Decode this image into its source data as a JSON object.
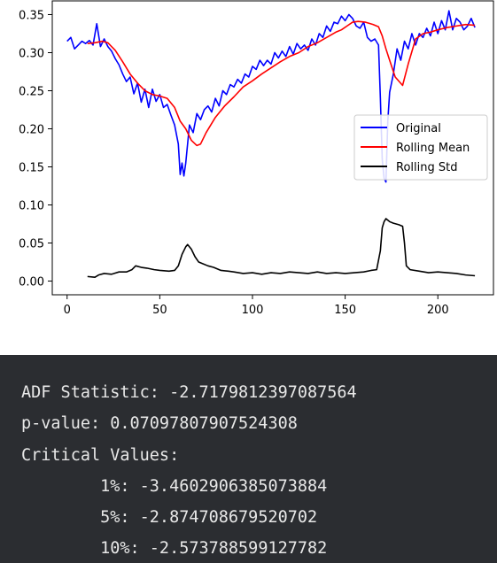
{
  "chart_data": {
    "type": "line",
    "title": "",
    "xlabel": "",
    "ylabel": "",
    "xlim": [
      -8,
      230
    ],
    "ylim": [
      -0.018,
      0.368
    ],
    "x_ticks": [
      0,
      50,
      100,
      150,
      200
    ],
    "y_ticks": [
      0.0,
      0.05,
      0.1,
      0.15,
      0.2,
      0.25,
      0.3,
      0.35
    ],
    "x_tick_labels": [
      "0",
      "50",
      "100",
      "150",
      "200"
    ],
    "y_tick_labels": [
      "0.00",
      "0.05",
      "0.10",
      "0.15",
      "0.20",
      "0.25",
      "0.30",
      "0.35"
    ],
    "grid": false,
    "legend_position": "center right",
    "series": [
      {
        "name": "Original",
        "color": "#0000ff",
        "points": [
          [
            0,
            0.315
          ],
          [
            2,
            0.32
          ],
          [
            4,
            0.305
          ],
          [
            6,
            0.31
          ],
          [
            8,
            0.315
          ],
          [
            10,
            0.312
          ],
          [
            12,
            0.316
          ],
          [
            14,
            0.31
          ],
          [
            16,
            0.338
          ],
          [
            18,
            0.308
          ],
          [
            20,
            0.318
          ],
          [
            22,
            0.308
          ],
          [
            24,
            0.302
          ],
          [
            26,
            0.292
          ],
          [
            28,
            0.284
          ],
          [
            30,
            0.272
          ],
          [
            32,
            0.262
          ],
          [
            34,
            0.268
          ],
          [
            36,
            0.246
          ],
          [
            38,
            0.26
          ],
          [
            40,
            0.235
          ],
          [
            42,
            0.252
          ],
          [
            44,
            0.228
          ],
          [
            46,
            0.252
          ],
          [
            48,
            0.236
          ],
          [
            50,
            0.245
          ],
          [
            52,
            0.228
          ],
          [
            54,
            0.232
          ],
          [
            56,
            0.218
          ],
          [
            58,
            0.205
          ],
          [
            60,
            0.18
          ],
          [
            61,
            0.14
          ],
          [
            62,
            0.155
          ],
          [
            63,
            0.138
          ],
          [
            64,
            0.155
          ],
          [
            66,
            0.205
          ],
          [
            68,
            0.195
          ],
          [
            70,
            0.22
          ],
          [
            72,
            0.212
          ],
          [
            74,
            0.225
          ],
          [
            76,
            0.23
          ],
          [
            78,
            0.222
          ],
          [
            80,
            0.24
          ],
          [
            82,
            0.23
          ],
          [
            84,
            0.25
          ],
          [
            86,
            0.245
          ],
          [
            88,
            0.258
          ],
          [
            90,
            0.255
          ],
          [
            92,
            0.265
          ],
          [
            94,
            0.26
          ],
          [
            96,
            0.272
          ],
          [
            98,
            0.268
          ],
          [
            100,
            0.282
          ],
          [
            102,
            0.278
          ],
          [
            104,
            0.29
          ],
          [
            106,
            0.283
          ],
          [
            108,
            0.29
          ],
          [
            110,
            0.285
          ],
          [
            112,
            0.3
          ],
          [
            114,
            0.293
          ],
          [
            116,
            0.302
          ],
          [
            118,
            0.295
          ],
          [
            120,
            0.308
          ],
          [
            122,
            0.298
          ],
          [
            124,
            0.312
          ],
          [
            126,
            0.305
          ],
          [
            128,
            0.31
          ],
          [
            130,
            0.303
          ],
          [
            132,
            0.318
          ],
          [
            134,
            0.31
          ],
          [
            136,
            0.325
          ],
          [
            138,
            0.32
          ],
          [
            140,
            0.335
          ],
          [
            142,
            0.328
          ],
          [
            144,
            0.34
          ],
          [
            146,
            0.338
          ],
          [
            148,
            0.348
          ],
          [
            150,
            0.342
          ],
          [
            152,
            0.35
          ],
          [
            154,
            0.345
          ],
          [
            156,
            0.335
          ],
          [
            158,
            0.332
          ],
          [
            160,
            0.34
          ],
          [
            162,
            0.32
          ],
          [
            164,
            0.315
          ],
          [
            166,
            0.318
          ],
          [
            168,
            0.31
          ],
          [
            169,
            0.24
          ],
          [
            170,
            0.16
          ],
          [
            171,
            0.135
          ],
          [
            172,
            0.13
          ],
          [
            173,
            0.21
          ],
          [
            174,
            0.248
          ],
          [
            176,
            0.272
          ],
          [
            178,
            0.305
          ],
          [
            180,
            0.29
          ],
          [
            182,
            0.315
          ],
          [
            184,
            0.305
          ],
          [
            186,
            0.325
          ],
          [
            188,
            0.31
          ],
          [
            190,
            0.325
          ],
          [
            192,
            0.32
          ],
          [
            194,
            0.332
          ],
          [
            196,
            0.322
          ],
          [
            198,
            0.34
          ],
          [
            200,
            0.325
          ],
          [
            202,
            0.342
          ],
          [
            204,
            0.33
          ],
          [
            206,
            0.355
          ],
          [
            208,
            0.33
          ],
          [
            210,
            0.345
          ],
          [
            212,
            0.34
          ],
          [
            214,
            0.33
          ],
          [
            216,
            0.335
          ],
          [
            218,
            0.345
          ],
          [
            220,
            0.333
          ]
        ]
      },
      {
        "name": "Rolling Mean",
        "color": "#ff0000",
        "points": [
          [
            11,
            0.312
          ],
          [
            15,
            0.313
          ],
          [
            19,
            0.315
          ],
          [
            22,
            0.313
          ],
          [
            26,
            0.303
          ],
          [
            30,
            0.288
          ],
          [
            34,
            0.272
          ],
          [
            38,
            0.26
          ],
          [
            42,
            0.25
          ],
          [
            46,
            0.245
          ],
          [
            50,
            0.243
          ],
          [
            54,
            0.24
          ],
          [
            58,
            0.228
          ],
          [
            61,
            0.21
          ],
          [
            64,
            0.2
          ],
          [
            67,
            0.185
          ],
          [
            70,
            0.178
          ],
          [
            72,
            0.18
          ],
          [
            75,
            0.195
          ],
          [
            80,
            0.215
          ],
          [
            85,
            0.23
          ],
          [
            90,
            0.242
          ],
          [
            95,
            0.255
          ],
          [
            100,
            0.263
          ],
          [
            105,
            0.272
          ],
          [
            110,
            0.28
          ],
          [
            115,
            0.288
          ],
          [
            120,
            0.295
          ],
          [
            125,
            0.3
          ],
          [
            130,
            0.308
          ],
          [
            135,
            0.313
          ],
          [
            140,
            0.32
          ],
          [
            145,
            0.327
          ],
          [
            148,
            0.33
          ],
          [
            151,
            0.335
          ],
          [
            154,
            0.34
          ],
          [
            157,
            0.341
          ],
          [
            161,
            0.34
          ],
          [
            165,
            0.337
          ],
          [
            168,
            0.334
          ],
          [
            170,
            0.322
          ],
          [
            172,
            0.305
          ],
          [
            174,
            0.29
          ],
          [
            177,
            0.268
          ],
          [
            181,
            0.257
          ],
          [
            184,
            0.285
          ],
          [
            188,
            0.318
          ],
          [
            192,
            0.325
          ],
          [
            196,
            0.327
          ],
          [
            200,
            0.33
          ],
          [
            205,
            0.333
          ],
          [
            210,
            0.335
          ],
          [
            215,
            0.337
          ],
          [
            220,
            0.336
          ]
        ]
      },
      {
        "name": "Rolling Std",
        "color": "#000000",
        "points": [
          [
            11,
            0.006
          ],
          [
            15,
            0.005
          ],
          [
            17,
            0.008
          ],
          [
            20,
            0.01
          ],
          [
            24,
            0.009
          ],
          [
            28,
            0.012
          ],
          [
            32,
            0.012
          ],
          [
            35,
            0.015
          ],
          [
            37,
            0.02
          ],
          [
            40,
            0.018
          ],
          [
            43,
            0.017
          ],
          [
            47,
            0.015
          ],
          [
            50,
            0.014
          ],
          [
            55,
            0.013
          ],
          [
            58,
            0.014
          ],
          [
            60,
            0.02
          ],
          [
            62,
            0.035
          ],
          [
            64,
            0.045
          ],
          [
            65,
            0.048
          ],
          [
            67,
            0.042
          ],
          [
            69,
            0.032
          ],
          [
            71,
            0.025
          ],
          [
            73,
            0.023
          ],
          [
            76,
            0.02
          ],
          [
            79,
            0.018
          ],
          [
            83,
            0.014
          ],
          [
            87,
            0.013
          ],
          [
            90,
            0.012
          ],
          [
            95,
            0.01
          ],
          [
            100,
            0.011
          ],
          [
            105,
            0.009
          ],
          [
            110,
            0.011
          ],
          [
            115,
            0.01
          ],
          [
            120,
            0.012
          ],
          [
            125,
            0.011
          ],
          [
            130,
            0.01
          ],
          [
            135,
            0.012
          ],
          [
            140,
            0.01
          ],
          [
            145,
            0.011
          ],
          [
            150,
            0.01
          ],
          [
            155,
            0.011
          ],
          [
            160,
            0.012
          ],
          [
            164,
            0.014
          ],
          [
            167,
            0.015
          ],
          [
            169,
            0.04
          ],
          [
            170,
            0.07
          ],
          [
            171,
            0.078
          ],
          [
            172,
            0.082
          ],
          [
            174,
            0.078
          ],
          [
            176,
            0.076
          ],
          [
            179,
            0.074
          ],
          [
            181,
            0.072
          ],
          [
            182,
            0.05
          ],
          [
            183,
            0.02
          ],
          [
            185,
            0.015
          ],
          [
            190,
            0.013
          ],
          [
            195,
            0.011
          ],
          [
            200,
            0.012
          ],
          [
            205,
            0.011
          ],
          [
            210,
            0.01
          ],
          [
            215,
            0.008
          ],
          [
            220,
            0.007
          ]
        ]
      }
    ]
  },
  "console": {
    "lines": [
      "ADF Statistic: -2.7179812397087564",
      "p-value: 0.07097807907524308",
      "Critical Values:",
      "\t1%: -3.4602906385073884",
      "\t5%: -2.874708679520702",
      "\t10%: -2.573788599127782"
    ]
  }
}
